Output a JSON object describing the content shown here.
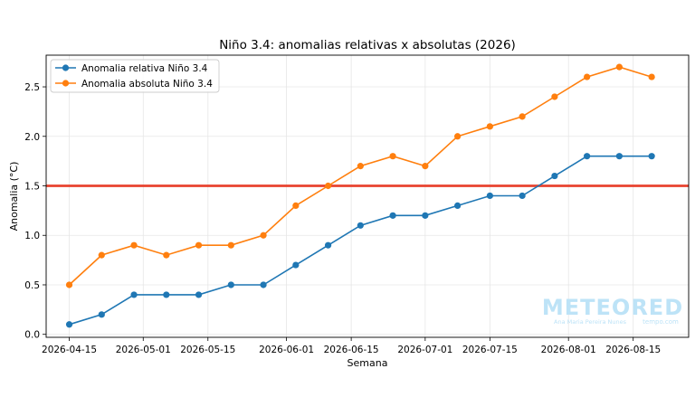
{
  "chart_data": {
    "type": "line",
    "title": "Niño 3.4: anomalias relativas x absolutas (2026)",
    "xlabel": "Semana",
    "ylabel": "Anomalia (°C)",
    "x": [
      "2026-04-15",
      "2026-04-22",
      "2026-04-29",
      "2026-05-06",
      "2026-05-13",
      "2026-05-20",
      "2026-05-27",
      "2026-06-03",
      "2026-06-10",
      "2026-06-17",
      "2026-06-24",
      "2026-07-01",
      "2026-07-08",
      "2026-07-15",
      "2026-07-22",
      "2026-07-29",
      "2026-08-05",
      "2026-08-12",
      "2026-08-19"
    ],
    "xticks": [
      "2026-04-15",
      "2026-05-01",
      "2026-05-15",
      "2026-06-01",
      "2026-06-15",
      "2026-07-01",
      "2026-07-15",
      "2026-08-01",
      "2026-08-15"
    ],
    "xlim": [
      "2026-04-10",
      "2026-08-27"
    ],
    "yticks": [
      "0.0",
      "0.5",
      "1.0",
      "1.5",
      "2.0",
      "2.5"
    ],
    "ylim": [
      -0.03,
      2.82
    ],
    "grid": true,
    "legend_position": "top-left",
    "series": [
      {
        "name": "Anomalia relativa Niño 3.4",
        "color": "#1f77b4",
        "values": [
          0.1,
          0.2,
          0.4,
          0.4,
          0.4,
          0.5,
          0.5,
          0.7,
          0.9,
          1.1,
          1.2,
          1.2,
          1.3,
          1.4,
          1.4,
          1.6,
          1.8,
          1.8,
          1.8
        ]
      },
      {
        "name": "Anomalia absoluta Niño 3.4",
        "color": "#ff7f0e",
        "values": [
          0.5,
          0.8,
          0.9,
          0.8,
          0.9,
          0.9,
          1.0,
          1.3,
          1.5,
          1.7,
          1.8,
          1.7,
          2.0,
          2.1,
          2.2,
          2.4,
          2.6,
          2.7,
          2.6
        ]
      }
    ],
    "threshold": {
      "value": 1.5,
      "color": "#e8432f"
    }
  },
  "watermark": {
    "brand": "METEORED",
    "author": "Ana Maria Pereira Nunes",
    "site": "tempo.com",
    "color": "#bde3f7"
  }
}
